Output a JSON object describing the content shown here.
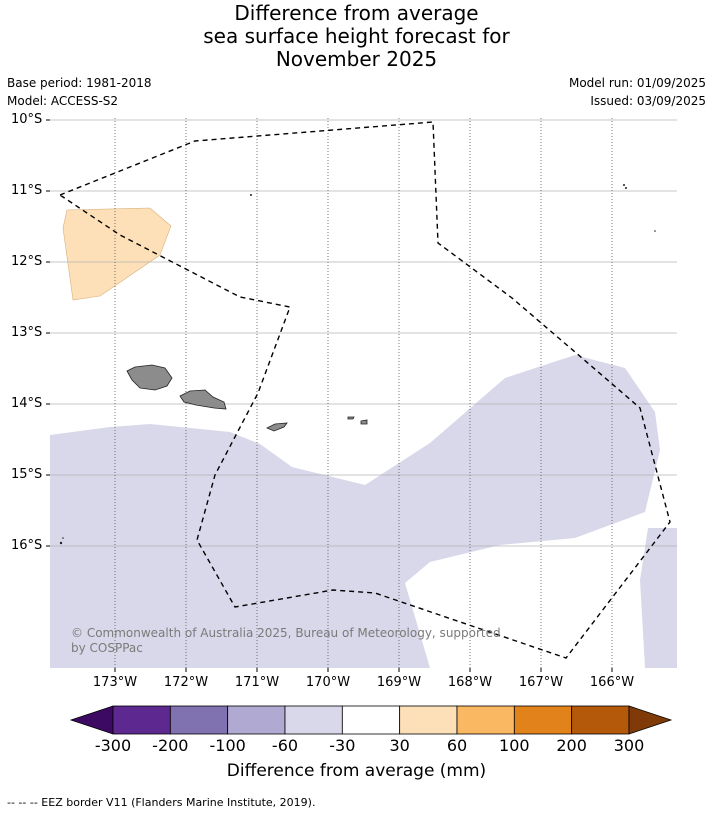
{
  "title": {
    "line1": "Difference from average",
    "line2": "sea surface height forecast for",
    "line3": "November 2025"
  },
  "meta": {
    "base_period": "Base period: 1981-2018",
    "model": "Model: ACCESS-S2",
    "model_run": "Model run: 01/09/2025",
    "issued": "Issued: 03/09/2025"
  },
  "map": {
    "lat_labels": [
      "10°S",
      "11°S",
      "12°S",
      "13°S",
      "14°S",
      "15°S",
      "16°S"
    ],
    "lon_labels": [
      "173°W",
      "172°W",
      "171°W",
      "170°W",
      "169°W",
      "168°W",
      "167°W",
      "166°W"
    ],
    "copyright_line1": "© Commonwealth of Australia 2025, Bureau of Meteorology, supported",
    "copyright_line2": "by COSPPac",
    "colors": {
      "land": "#8c8c8c",
      "anomaly_neg_60_30": "#d8d8ea",
      "anomaly_30_60": "#fde0b8"
    }
  },
  "colorbar": {
    "ticks": [
      "-300",
      "-200",
      "-100",
      "-60",
      "-30",
      "30",
      "60",
      "100",
      "200",
      "300"
    ],
    "colors": [
      "#3d0a63",
      "#5e2891",
      "#8072b0",
      "#b0a9d2",
      "#d8d8ea",
      "#ffffff",
      "#fde0b8",
      "#fbb862",
      "#e2821a",
      "#b45909",
      "#7f3a08"
    ],
    "title": "Difference from average (mm)"
  },
  "footnote": "--  --  -- EEZ border V11 (Flanders Marine Institute, 2019)."
}
